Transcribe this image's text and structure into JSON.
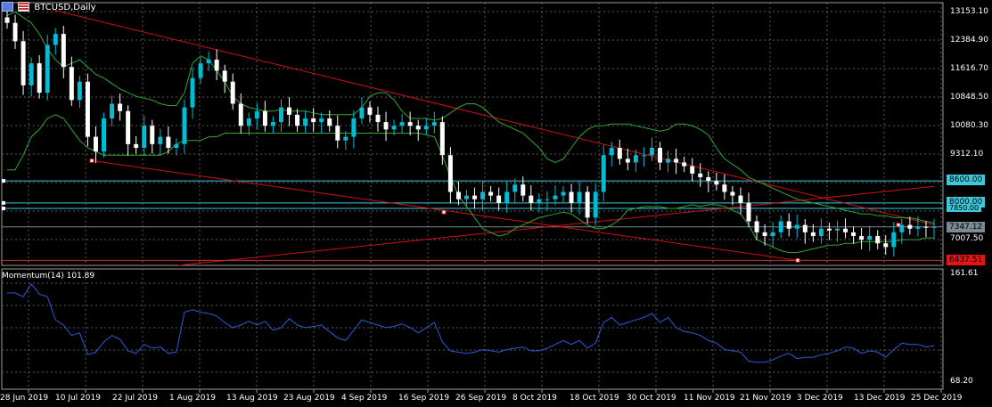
{
  "window": {
    "symbol_title": "BTCUSD,Daily",
    "indicator_title": "Momentum(14) 101.89",
    "timeframe_icon": "calendar-icon",
    "flag_icon": "us-flag-icon"
  },
  "colors": {
    "background": "#000000",
    "grid": "#5a5a5a",
    "bull_candle": "#00bcd4",
    "bear_candle": "#ffffff",
    "bands": "#2fa82f",
    "trendline": "#d01010",
    "hline": "#3fc6d8",
    "momentum": "#2a5bd7",
    "ask_line": "#c83030"
  },
  "price_axis": {
    "ticks": [
      "13153.10",
      "12384.90",
      "11616.70",
      "10848.50",
      "10080.30",
      "9312.10",
      "7007.50"
    ],
    "ylim": [
      6300,
      13450
    ]
  },
  "price_labels": {
    "level_8600": "8600.00",
    "level_8000": "8000.00",
    "level_7850": "7850.00",
    "current": "7347.12",
    "low_marker": "6437.51"
  },
  "momentum_axis": {
    "top": "161.61",
    "bottom": "68.20"
  },
  "time_axis": {
    "labels": [
      "28 Jun 2019",
      "10 Jul 2019",
      "22 Jul 2019",
      "1 Aug 2019",
      "13 Aug 2019",
      "23 Aug 2019",
      "4 Sep 2019",
      "16 Sep 2019",
      "26 Sep 2019",
      "8 Oct 2019",
      "18 Oct 2019",
      "30 Oct 2019",
      "11 Nov 2019",
      "21 Nov 2019",
      "3 Dec 2019",
      "13 Dec 2019",
      "25 Dec 2019"
    ]
  },
  "chart_data": {
    "type": "candlestick",
    "symbol": "BTCUSD",
    "closes": [
      12900,
      12400,
      11200,
      11800,
      11000,
      12300,
      12600,
      11700,
      10800,
      11300,
      9800,
      9400,
      10300,
      10700,
      10500,
      9600,
      9500,
      10100,
      9600,
      9800,
      9500,
      9600,
      10600,
      11400,
      11800,
      11900,
      11600,
      11300,
      10700,
      10100,
      10300,
      10500,
      10100,
      10200,
      10600,
      10400,
      10100,
      10300,
      10200,
      10300,
      10100,
      9700,
      9800,
      10300,
      10600,
      10400,
      10200,
      10000,
      10100,
      10200,
      10100,
      10000,
      10100,
      10200,
      9300,
      8300,
      8100,
      8200,
      8100,
      8300,
      8200,
      8000,
      8300,
      8500,
      8200,
      8000,
      8100,
      8100,
      8200,
      8300,
      8000,
      8300,
      7600,
      8300,
      9300,
      9500,
      9200,
      9100,
      9300,
      9300,
      9500,
      9100,
      9200,
      9100,
      9000,
      8800,
      8700,
      8600,
      8500,
      8300,
      8200,
      8000,
      7500,
      7200,
      7100,
      7200,
      7500,
      7300,
      7400,
      7200,
      7100,
      7300,
      7250,
      7300,
      7200,
      7100,
      7000,
      7100,
      6900,
      6800,
      7200,
      7400,
      7300,
      7350,
      7330,
      7347
    ],
    "upper_band_approx": [
      13100,
      13200,
      13050,
      12900,
      12600,
      12200,
      11900,
      11700,
      11800,
      11900,
      11700,
      11500,
      11400,
      11250,
      11100,
      11000,
      10900,
      10850,
      10800,
      10700,
      10650,
      10650,
      11000,
      11800,
      12000,
      11900,
      11600,
      11300,
      10900,
      10700,
      10600,
      10550,
      10500,
      10500,
      10550,
      10500,
      10500,
      10500,
      10450,
      10400,
      10400,
      10400,
      10400,
      10400,
      10600,
      10900,
      11000,
      11000,
      10800,
      10500,
      10300,
      10300,
      10300,
      10250,
      10300,
      10450,
      10600,
      10700,
      10700,
      10600,
      10400,
      10200,
      10100,
      10000,
      9900,
      9700,
      9500,
      9200,
      9100,
      9200,
      9500,
      9800,
      10000,
      10100,
      10100,
      10150,
      10150,
      10150,
      10100,
      10050,
      10000,
      9950,
      10000,
      10150,
      10150,
      10100,
      10000,
      9850,
      9500,
      9200,
      9050,
      8900,
      8700,
      8600,
      8500,
      8400,
      8300,
      8200,
      8100,
      8050,
      8000,
      7950,
      7900,
      7850,
      7800,
      7750,
      7700,
      7700,
      7650,
      7650,
      7600,
      7600,
      7600,
      7550,
      7500,
      7450
    ],
    "lower_band_approx": [
      8900,
      8900,
      9300,
      9800,
      10000,
      10300,
      10400,
      10300,
      10000,
      9700,
      9500,
      9400,
      9300,
      9300,
      9300,
      9300,
      9300,
      9300,
      9300,
      9300,
      9400,
      9600,
      9700,
      9700,
      9700,
      9800,
      9800,
      9900,
      9900,
      9900,
      9900,
      9900,
      9900,
      9900,
      9900,
      9900,
      9900,
      9900,
      9900,
      9900,
      9900,
      9900,
      9900,
      9900,
      9900,
      9900,
      9900,
      9900,
      9900,
      9900,
      9900,
      9900,
      9850,
      9800,
      9300,
      8700,
      8200,
      7900,
      7600,
      7300,
      7200,
      7100,
      7150,
      7300,
      7400,
      7500,
      7600,
      7650,
      7700,
      7750,
      7700,
      7550,
      7400,
      7300,
      7300,
      7400,
      7550,
      7800,
      7850,
      7900,
      7900,
      7900,
      7850,
      7850,
      7900,
      7950,
      7900,
      7950,
      7950,
      7900,
      7800,
      7700,
      7400,
      7000,
      6900,
      6800,
      6700,
      6650,
      6650,
      6700,
      6750,
      6800,
      6850,
      6850,
      6900,
      6900,
      6950,
      6950,
      6950,
      6950,
      6950,
      7000,
      7000,
      7000,
      7050,
      7050
    ],
    "hlines": [
      8600,
      8000,
      7850,
      7347.12
    ],
    "low_marker": 6437.51,
    "momentum_range": [
      68.2,
      161.61
    ],
    "momentum_last": 101.89,
    "momentum": [
      143,
      143,
      140,
      150,
      142,
      140,
      122,
      118,
      110,
      112,
      95,
      97,
      105,
      110,
      107,
      98,
      96,
      103,
      100,
      101,
      96,
      97,
      128,
      130,
      128,
      127,
      125,
      120,
      116,
      118,
      121,
      118,
      121,
      114,
      116,
      123,
      118,
      116,
      117,
      118,
      113,
      108,
      106,
      114,
      122,
      120,
      118,
      116,
      117,
      119,
      116,
      112,
      116,
      120,
      105,
      98,
      97,
      96,
      97,
      99,
      98,
      97,
      99,
      100,
      101,
      98,
      98,
      100,
      103,
      106,
      103,
      106,
      100,
      104,
      120,
      124,
      118,
      120,
      122,
      124,
      127,
      120,
      124,
      116,
      113,
      112,
      110,
      106,
      104,
      99,
      98,
      97,
      90,
      89,
      89,
      91,
      94,
      96,
      92,
      93,
      93,
      95,
      96,
      98,
      101,
      100,
      96,
      98,
      97,
      93,
      99,
      104,
      103,
      103,
      101,
      102
    ]
  }
}
